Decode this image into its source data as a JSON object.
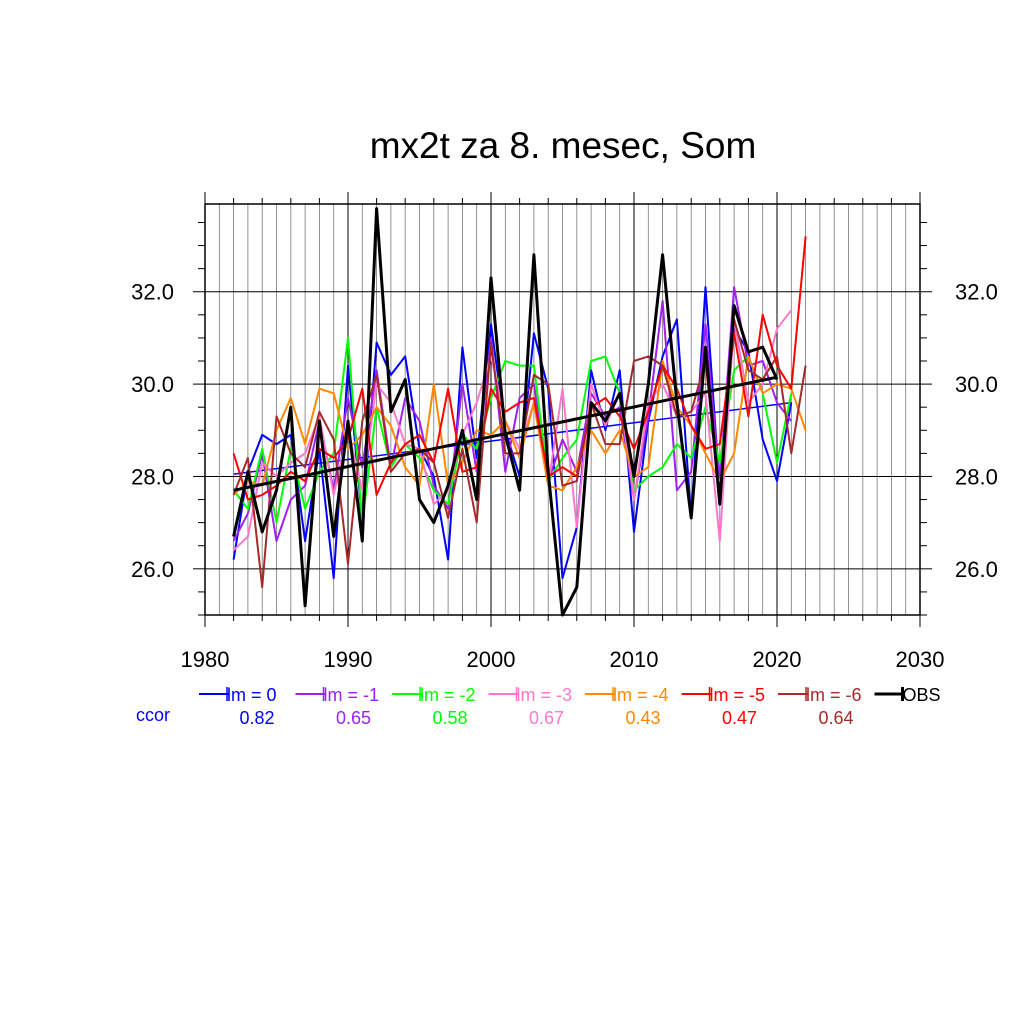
{
  "chart_data": {
    "type": "line",
    "title": "mx2t za 8. mesec, Som",
    "xlabel": "",
    "ylabel": "",
    "xlim": [
      1980,
      2030
    ],
    "ylim": [
      25.0,
      33.9
    ],
    "x_ticks": [
      {
        "value": 1980,
        "label": "1980"
      },
      {
        "value": 1990,
        "label": "1990"
      },
      {
        "value": 2000,
        "label": "2000"
      },
      {
        "value": 2010,
        "label": "2010"
      },
      {
        "value": 2020,
        "label": "2020"
      },
      {
        "value": 2030,
        "label": "2030"
      }
    ],
    "y_ticks": [
      {
        "value": 26,
        "label": "26.0"
      },
      {
        "value": 28,
        "label": "28.0"
      },
      {
        "value": 30,
        "label": "30.0"
      },
      {
        "value": 32,
        "label": "32.0"
      }
    ],
    "grid": true,
    "ccor_label": "ccor",
    "series": [
      {
        "name": "lm = 0",
        "color": "#0000ff",
        "ccor": "0.82",
        "trend": [
          [
            1982,
            28.05
          ],
          [
            2021,
            29.6
          ]
        ],
        "x": [
          1982,
          1983,
          1984,
          1985,
          1986,
          1987,
          1988,
          1989,
          1990,
          1991,
          1992,
          1993,
          1994,
          1995,
          1996,
          1997,
          1998,
          1999,
          2000,
          2001,
          2002,
          2003,
          2004,
          2005,
          2006,
          2007,
          2008,
          2009,
          2010,
          2011,
          2012,
          2013,
          2014,
          2015,
          2016,
          2017,
          2018,
          2019,
          2020,
          2021
        ],
        "values": [
          26.2,
          28.1,
          28.9,
          28.7,
          28.9,
          26.6,
          28.6,
          25.8,
          30.4,
          27.0,
          30.9,
          30.2,
          30.6,
          28.6,
          28.0,
          26.2,
          30.8,
          28.4,
          31.3,
          29.0,
          28.0,
          31.1,
          29.9,
          25.8,
          26.9,
          30.3,
          29.0,
          30.3,
          26.8,
          29.2,
          30.6,
          31.4,
          27.1,
          32.1,
          27.7,
          31.2,
          30.7,
          28.8,
          27.9,
          29.6
        ]
      },
      {
        "name": "lm = -1",
        "color": "#a020f0",
        "ccor": "0.65",
        "trend": null,
        "x": [
          1982,
          1983,
          1984,
          1985,
          1986,
          1987,
          1988,
          1989,
          1990,
          1991,
          1992,
          1993,
          1994,
          1995,
          1996,
          1997,
          1998,
          1999,
          2000,
          2001,
          2002,
          2003,
          2004,
          2005,
          2006,
          2007,
          2008,
          2009,
          2010,
          2011,
          2012,
          2013,
          2014,
          2015,
          2016,
          2017,
          2018,
          2019,
          2020,
          2021
        ],
        "values": [
          26.6,
          27.2,
          28.5,
          26.6,
          27.5,
          27.8,
          29.2,
          27.7,
          29.7,
          28.2,
          30.3,
          28.2,
          29.7,
          29.2,
          27.8,
          27.3,
          30.0,
          28.1,
          31.0,
          28.1,
          29.7,
          30.0,
          27.9,
          28.8,
          28.1,
          29.8,
          29.3,
          29.5,
          27.5,
          29.3,
          31.8,
          27.7,
          28.1,
          31.3,
          27.9,
          32.1,
          30.4,
          30.5,
          29.6,
          29.2
        ]
      },
      {
        "name": "lm = -2",
        "color": "#00ff00",
        "ccor": "0.58",
        "trend": null,
        "x": [
          1982,
          1983,
          1984,
          1985,
          1986,
          1987,
          1988,
          1989,
          1990,
          1991,
          1992,
          1993,
          1994,
          1995,
          1996,
          1997,
          1998,
          1999,
          2000,
          2001,
          2002,
          2003,
          2004,
          2005,
          2006,
          2007,
          2008,
          2009,
          2010,
          2011,
          2012,
          2013,
          2014,
          2015,
          2016,
          2017,
          2018,
          2019,
          2020,
          2021
        ],
        "values": [
          27.7,
          27.3,
          28.6,
          27.0,
          28.6,
          27.3,
          28.1,
          28.5,
          31.0,
          27.0,
          29.5,
          28.2,
          28.7,
          28.4,
          27.7,
          27.4,
          28.9,
          28.6,
          29.7,
          30.5,
          30.4,
          30.4,
          27.9,
          28.4,
          28.8,
          30.5,
          30.6,
          29.8,
          27.7,
          28.0,
          28.2,
          28.7,
          28.4,
          29.5,
          28.3,
          30.3,
          30.6,
          29.8,
          28.3,
          29.8
        ]
      },
      {
        "name": "lm = -3",
        "color": "#ff77cc",
        "ccor": "0.67",
        "trend": null,
        "x": [
          1982,
          1983,
          1984,
          1985,
          1986,
          1987,
          1988,
          1989,
          1990,
          1991,
          1992,
          1993,
          1994,
          1995,
          1996,
          1997,
          1998,
          1999,
          2000,
          2001,
          2002,
          2003,
          2004,
          2005,
          2006,
          2007,
          2008,
          2009,
          2010,
          2011,
          2012,
          2013,
          2014,
          2015,
          2016,
          2017,
          2018,
          2019,
          2020,
          2021
        ],
        "values": [
          26.4,
          26.7,
          28.3,
          28.0,
          28.3,
          28.5,
          29.3,
          27.6,
          29.0,
          27.7,
          30.0,
          29.6,
          28.7,
          28.6,
          27.4,
          27.7,
          28.9,
          29.6,
          30.6,
          29.2,
          28.6,
          29.6,
          27.8,
          29.9,
          26.9,
          30.0,
          29.1,
          29.8,
          27.5,
          29.6,
          30.0,
          29.3,
          29.4,
          29.8,
          26.6,
          31.4,
          29.6,
          30.0,
          31.2,
          31.6
        ]
      },
      {
        "name": "lm = -4",
        "color": "#ff8800",
        "ccor": "0.43",
        "trend": null,
        "x": [
          1982,
          1983,
          1984,
          1985,
          1986,
          1987,
          1988,
          1989,
          1990,
          1991,
          1992,
          1993,
          1994,
          1995,
          1996,
          1997,
          1998,
          1999,
          2000,
          2001,
          2002,
          2003,
          2004,
          2005,
          2006,
          2007,
          2008,
          2009,
          2010,
          2011,
          2012,
          2013,
          2014,
          2015,
          2016,
          2017,
          2018,
          2019,
          2020,
          2021,
          2022
        ],
        "values": [
          27.6,
          27.9,
          27.8,
          29.0,
          29.7,
          28.7,
          29.9,
          29.8,
          28.6,
          28.9,
          29.5,
          29.1,
          28.2,
          27.8,
          30.0,
          27.8,
          28.3,
          29.0,
          28.9,
          29.2,
          28.4,
          29.6,
          27.8,
          27.7,
          28.2,
          29.0,
          28.5,
          29.0,
          28.0,
          28.2,
          30.5,
          29.5,
          29.1,
          28.5,
          27.9,
          28.5,
          30.6,
          29.8,
          30.0,
          29.9,
          29.0
        ]
      },
      {
        "name": "lm = -5",
        "color": "#ff0000",
        "ccor": "0.47",
        "trend": null,
        "x": [
          1982,
          1983,
          1984,
          1985,
          1986,
          1987,
          1988,
          1989,
          1990,
          1991,
          1992,
          1993,
          1994,
          1995,
          1996,
          1997,
          1998,
          1999,
          2000,
          2001,
          2002,
          2003,
          2004,
          2005,
          2006,
          2007,
          2008,
          2009,
          2010,
          2011,
          2012,
          2013,
          2014,
          2015,
          2016,
          2017,
          2018,
          2019,
          2020,
          2021,
          2022
        ],
        "values": [
          28.5,
          27.5,
          27.6,
          27.8,
          28.1,
          27.9,
          28.6,
          28.4,
          28.8,
          29.9,
          27.6,
          28.3,
          28.7,
          28.9,
          28.3,
          29.9,
          28.1,
          28.2,
          29.9,
          29.4,
          29.6,
          29.7,
          28.0,
          28.2,
          28.0,
          29.5,
          29.7,
          29.3,
          28.6,
          29.4,
          30.4,
          29.9,
          29.1,
          28.6,
          28.7,
          31.1,
          29.3,
          31.5,
          30.4,
          29.9,
          33.2
        ]
      },
      {
        "name": "lm = -6",
        "color": "#a52a2a",
        "ccor": "0.64",
        "trend": null,
        "x": [
          1982,
          1983,
          1984,
          1985,
          1986,
          1987,
          1988,
          1989,
          1990,
          1991,
          1992,
          1993,
          1994,
          1995,
          1996,
          1997,
          1998,
          1999,
          2000,
          2001,
          2002,
          2003,
          2004,
          2005,
          2006,
          2007,
          2008,
          2009,
          2010,
          2011,
          2012,
          2013,
          2014,
          2015,
          2016,
          2017,
          2018,
          2019,
          2020,
          2021,
          2022
        ],
        "values": [
          27.6,
          28.4,
          25.6,
          29.3,
          28.5,
          28.2,
          29.4,
          28.8,
          26.1,
          29.2,
          30.2,
          28.1,
          28.5,
          28.6,
          28.3,
          27.1,
          28.6,
          27.0,
          30.9,
          28.5,
          28.5,
          30.2,
          30.0,
          27.8,
          27.9,
          29.6,
          28.7,
          28.7,
          30.5,
          30.6,
          30.4,
          29.3,
          29.4,
          30.5,
          27.5,
          31.4,
          30.3,
          30.1,
          30.6,
          28.5,
          30.4
        ]
      },
      {
        "name": "OBS",
        "color": "#000000",
        "ccor": "",
        "trend": [
          [
            1982,
            27.7
          ],
          [
            2020,
            30.15
          ]
        ],
        "x": [
          1982,
          1983,
          1984,
          1985,
          1986,
          1987,
          1988,
          1989,
          1990,
          1991,
          1992,
          1993,
          1994,
          1995,
          1996,
          1997,
          1998,
          1999,
          2000,
          2001,
          2002,
          2003,
          2004,
          2005,
          2006,
          2007,
          2008,
          2009,
          2010,
          2011,
          2012,
          2013,
          2014,
          2015,
          2016,
          2017,
          2018,
          2019,
          2020
        ],
        "values": [
          26.7,
          28.1,
          26.8,
          27.7,
          29.5,
          25.2,
          29.2,
          26.7,
          29.2,
          26.6,
          33.8,
          29.4,
          30.1,
          27.5,
          27.0,
          27.8,
          29.0,
          27.5,
          32.3,
          28.9,
          27.7,
          32.8,
          28.1,
          25.0,
          25.6,
          29.6,
          29.2,
          29.8,
          28.0,
          30.0,
          32.8,
          29.6,
          27.1,
          30.8,
          27.4,
          31.7,
          30.7,
          30.8,
          30.1
        ]
      }
    ]
  }
}
